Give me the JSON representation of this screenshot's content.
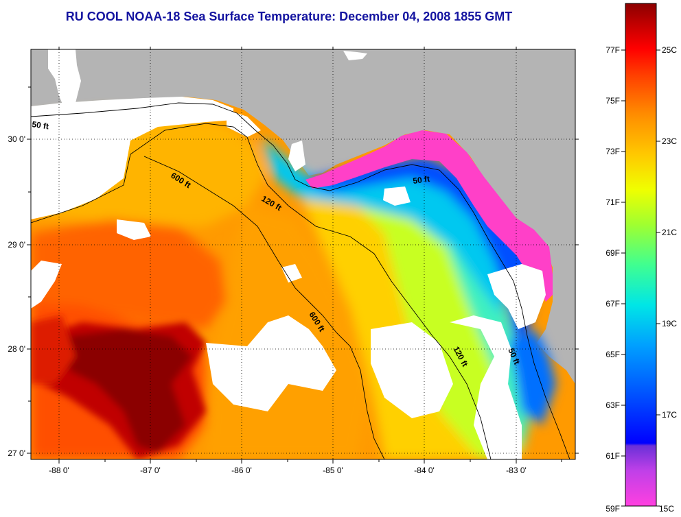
{
  "title": "RU COOL  NOAA-18  Sea Surface Temperature:  December 04, 2008 1855 GMT",
  "map": {
    "lon_range": [
      -88.3,
      -82.5
    ],
    "lat_range": [
      26.95,
      30.9
    ],
    "lon_ticks": [
      "-88 0'",
      "-87 0'",
      "-86 0'",
      "-85 0'",
      "-84 0'",
      "-83 0'"
    ],
    "lat_ticks": [
      "30 0'",
      "29 0'",
      "28 0'",
      "27 0'"
    ],
    "land_color": "#b4b4b4",
    "cloud_color": "#ffffff",
    "contour_labels": [
      "50 ft",
      "600 ft",
      "120 ft",
      "50 ft",
      "600 ft",
      "120 ft",
      "50 ft"
    ]
  },
  "colorbar": {
    "range_c": [
      15,
      26.2
    ],
    "celsius_labels": [
      "25C",
      "23C",
      "21C",
      "19C",
      "17C",
      "15C"
    ],
    "fahrenheit_labels": [
      "77F",
      "75F",
      "73F",
      "71F",
      "69F",
      "67F",
      "65F",
      "63F",
      "61F",
      "59F"
    ],
    "colors": [
      "#ff40c8",
      "#8040e0",
      "#0000ff",
      "#0096ff",
      "#00e6e6",
      "#40ff80",
      "#e6ff00",
      "#ffb400",
      "#ff6400",
      "#ff0000",
      "#c00000",
      "#8b0000"
    ]
  }
}
